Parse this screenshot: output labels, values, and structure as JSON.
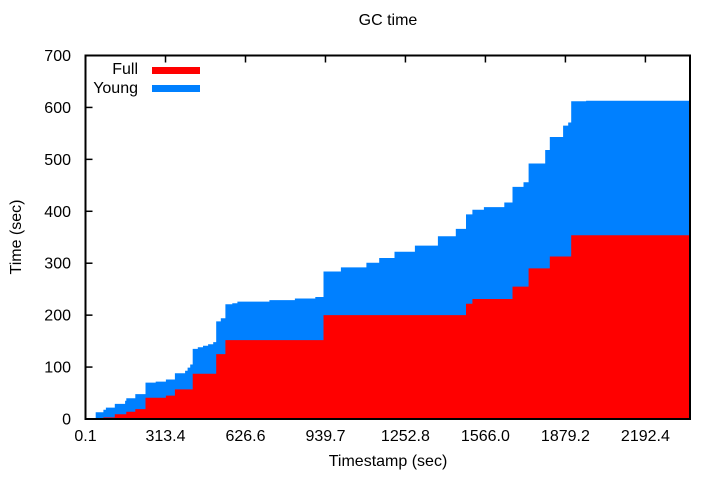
{
  "title": "GC time",
  "x_axis": {
    "label": "Timestamp (sec)",
    "tick_labels": [
      "0.1",
      "313.4",
      "626.6",
      "939.7",
      "1252.8",
      "1566.0",
      "1879.2",
      "2192.4"
    ],
    "tick_values": [
      0.1,
      313.4,
      626.6,
      939.7,
      1252.8,
      1566.0,
      1879.2,
      2192.4
    ],
    "min": 0.1,
    "max": 2367
  },
  "y_axis": {
    "label": "Time (sec)",
    "tick_labels": [
      "0",
      "100",
      "200",
      "300",
      "400",
      "500",
      "600",
      "700"
    ],
    "tick_values": [
      0,
      100,
      200,
      300,
      400,
      500,
      600,
      700
    ],
    "min": 0,
    "max": 700
  },
  "legend": {
    "position": "top-left",
    "items": [
      {
        "label": "Full",
        "color": "#ff0000"
      },
      {
        "label": "Young",
        "color": "#0080ff"
      }
    ]
  },
  "chart_data": {
    "type": "area",
    "subtype": "stacked-cumulative-steps",
    "title": "GC time",
    "xlabel": "Timestamp (sec)",
    "ylabel": "Time (sec)",
    "xlim": [
      0.1,
      2367
    ],
    "ylim": [
      0,
      700
    ],
    "x_ticks": [
      0.1,
      313.4,
      626.6,
      939.7,
      1252.8,
      1566.0,
      1879.2,
      2192.4
    ],
    "y_ticks": [
      0,
      100,
      200,
      300,
      400,
      500,
      600,
      700
    ],
    "grid": false,
    "legend_position": "top-left",
    "stacking_note": "Young values are stacked on top of Full; visible blue top edge = Full + Young cumulative seconds",
    "x": [
      0.1,
      40,
      70,
      80,
      115,
      155,
      160,
      195,
      235,
      275,
      315,
      350,
      390,
      400,
      410,
      420,
      440,
      460,
      480,
      500,
      512,
      530,
      548,
      575,
      595,
      720,
      820,
      900,
      932,
      1000,
      1100,
      1150,
      1210,
      1290,
      1380,
      1450,
      1490,
      1515,
      1560,
      1640,
      1672,
      1715,
      1735,
      1800,
      1818,
      1870,
      1890,
      1902,
      1960,
      2367
    ],
    "series": [
      {
        "name": "Full",
        "color": "#ff0000",
        "values": [
          0,
          0,
          3,
          3,
          9,
          9,
          14,
          19,
          41,
          41,
          45,
          57,
          57,
          57,
          57,
          87,
          87,
          87,
          87,
          87,
          125,
          125,
          152,
          152,
          152,
          152,
          152,
          152,
          200,
          200,
          200,
          200,
          200,
          200,
          200,
          200,
          222,
          231,
          231,
          231,
          255,
          255,
          290,
          290,
          313,
          313,
          313,
          354,
          354,
          354
        ]
      },
      {
        "name": "Young",
        "color": "#0080ff",
        "values": [
          0,
          13,
          15,
          19,
          20,
          26,
          26,
          29,
          29,
          31,
          31,
          31,
          36,
          42,
          48,
          48,
          51,
          54,
          57,
          61,
          63,
          69,
          69,
          71,
          74,
          77,
          80,
          83,
          84,
          92,
          101,
          110,
          122,
          134,
          152,
          166,
          172,
          172,
          177,
          186,
          192,
          201,
          202,
          228,
          230,
          252,
          258,
          258,
          259,
          261
        ]
      }
    ]
  }
}
